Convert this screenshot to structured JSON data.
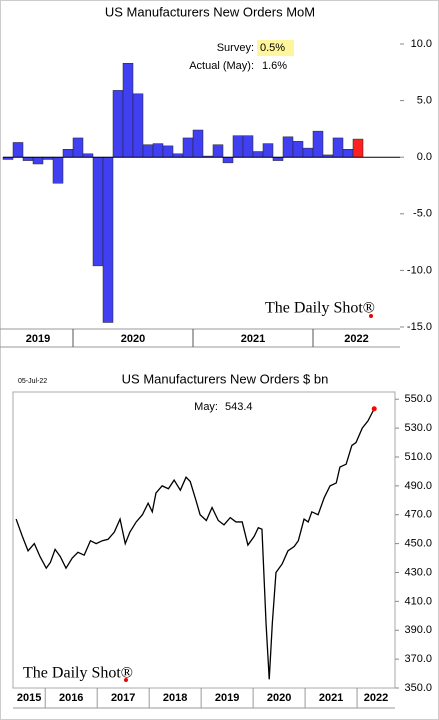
{
  "chart_data": [
    {
      "type": "bar",
      "title": "US Manufacturers New Orders MoM",
      "categories": [
        null,
        null,
        null,
        null,
        null,
        null,
        null,
        null,
        null,
        null,
        null,
        null,
        null,
        null,
        null,
        null,
        null,
        null,
        null,
        null,
        null,
        null,
        null,
        null,
        null,
        null,
        null,
        null,
        null,
        null,
        null,
        null,
        null,
        null,
        null,
        null
      ],
      "values": [
        -0.2,
        1.3,
        -0.3,
        -0.6,
        -0.2,
        -2.3,
        0.7,
        1.7,
        0.3,
        -9.6,
        -14.6,
        5.9,
        8.3,
        5.6,
        1.1,
        1.2,
        1.0,
        0.3,
        1.7,
        2.4,
        0.1,
        1.1,
        -0.5,
        1.9,
        1.9,
        0.5,
        1.2,
        -0.3,
        1.8,
        1.4,
        0.8,
        2.3,
        0.2,
        1.7,
        0.7,
        1.6
      ],
      "groups": [
        {
          "label": "2019",
          "count": 7
        },
        {
          "label": "2020",
          "count": 12
        },
        {
          "label": "2021",
          "count": 12
        },
        {
          "label": "2022",
          "count": 5
        }
      ],
      "annotations": [
        {
          "label": "Survey:",
          "value": "0.5%"
        },
        {
          "label": "Actual (May):",
          "value": "1.6%"
        }
      ],
      "watermark": "The Daily Shot®",
      "color": "#4040f2",
      "last_color": "#ff2020",
      "ylim": [
        -15,
        11.5
      ],
      "yticks": [
        {
          "value": 10,
          "label": "10.0"
        },
        {
          "value": 5,
          "label": "5.0"
        },
        {
          "value": 0,
          "label": "0.0"
        },
        {
          "value": -5,
          "label": "-5.0"
        },
        {
          "value": -10,
          "label": "-10.0"
        },
        {
          "value": -15,
          "label": "-15.0"
        }
      ]
    },
    {
      "type": "line",
      "title": "US Manufacturers New Orders $ bn",
      "date": "05-Jul-22",
      "x": [
        2015.44,
        2015.56,
        2015.67,
        2015.79,
        2015.9,
        2016.02,
        2016.1,
        2016.19,
        2016.29,
        2016.4,
        2016.52,
        2016.63,
        2016.75,
        2016.87,
        2016.98,
        2017.1,
        2017.21,
        2017.33,
        2017.44,
        2017.54,
        2017.63,
        2017.75,
        2017.87,
        2017.98,
        2018.06,
        2018.13,
        2018.25,
        2018.37,
        2018.48,
        2018.6,
        2018.71,
        2018.79,
        2018.9,
        2018.98,
        2019.1,
        2019.21,
        2019.33,
        2019.44,
        2019.56,
        2019.67,
        2019.79,
        2019.9,
        2020.02,
        2020.1,
        2020.17,
        2020.25,
        2020.31,
        2020.37,
        2020.44,
        2020.56,
        2020.67,
        2020.79,
        2020.87,
        2020.98,
        2021.06,
        2021.13,
        2021.25,
        2021.37,
        2021.48,
        2021.6,
        2021.67,
        2021.79,
        2021.9,
        2021.98,
        2022.1,
        2022.21,
        2022.33
      ],
      "values": [
        467,
        455,
        445,
        450,
        441,
        433,
        437,
        446,
        441,
        433,
        440,
        444,
        442,
        452,
        450,
        452,
        453,
        458,
        467,
        450,
        458,
        465,
        470,
        478,
        472,
        485,
        490,
        488,
        494,
        487,
        496,
        493,
        480,
        470,
        466,
        475,
        466,
        463,
        468,
        465,
        465,
        449,
        455,
        461,
        460,
        394,
        356,
        395,
        430,
        436,
        445,
        448,
        452,
        467,
        465,
        472,
        470,
        482,
        490,
        492,
        503,
        505,
        518,
        520,
        530,
        535,
        543.4
      ],
      "annotations": [
        {
          "label": "May:",
          "value": "543.4"
        }
      ],
      "watermark": "The Daily Shot®",
      "color": "#000000",
      "end_marker_color": "#ff0000",
      "xlim": [
        2015.38,
        2022.73
      ],
      "xticks": [
        2015,
        2016,
        2017,
        2018,
        2019,
        2020,
        2021,
        2022
      ],
      "ylim": [
        350,
        555
      ],
      "yticks": [
        {
          "value": 350,
          "label": "350.0"
        },
        {
          "value": 370,
          "label": "370.0"
        },
        {
          "value": 390,
          "label": "390.0"
        },
        {
          "value": 410,
          "label": "410.0"
        },
        {
          "value": 430,
          "label": "430.0"
        },
        {
          "value": 450,
          "label": "450.0"
        },
        {
          "value": 470,
          "label": "470.0"
        },
        {
          "value": 490,
          "label": "490.0"
        },
        {
          "value": 510,
          "label": "510.0"
        },
        {
          "value": 530,
          "label": "530.0"
        },
        {
          "value": 550,
          "label": "550.0"
        }
      ]
    }
  ]
}
